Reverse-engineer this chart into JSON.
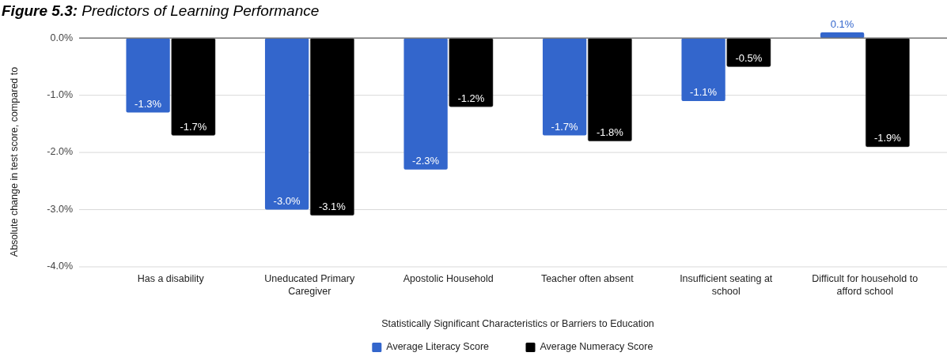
{
  "chart_data": {
    "type": "bar",
    "title": "Figure 5.3: Predictors of Learning Performance",
    "xlabel": "Statistically Significant Characteristics or Barriers to Education",
    "ylabel": "Absolute change in test score, compared to",
    "categories": [
      "Has a disability",
      "Uneducated Primary Caregiver",
      "Apostolic Household",
      "Teacher often absent",
      "Insufficient seating at school",
      "Difficult for household to afford school"
    ],
    "series": [
      {
        "name": "Average Literacy Score",
        "color": "#3366cc",
        "values": [
          -1.3,
          -3.0,
          -2.3,
          -1.7,
          -1.1,
          0.1
        ],
        "value_labels": [
          "-1.3%",
          "-3.0%",
          "-2.3%",
          "-1.7%",
          "-1.1%",
          "0.1%"
        ]
      },
      {
        "name": "Average Numeracy Score",
        "color": "#000000",
        "values": [
          -1.7,
          -3.1,
          -1.2,
          -1.8,
          -0.5,
          -1.9
        ],
        "value_labels": [
          "-1.7%",
          "-3.1%",
          "-1.2%",
          "-1.8%",
          "-0.5%",
          "-1.9%"
        ]
      }
    ],
    "ylim": [
      -4,
      0.1
    ],
    "yticks": [
      {
        "value": -4,
        "label": "-4.0%"
      },
      {
        "value": -3,
        "label": "-3.0%"
      },
      {
        "value": -2,
        "label": "-2.0%"
      },
      {
        "value": -1,
        "label": "-1.0%"
      },
      {
        "value": 0,
        "label": "0.0%"
      }
    ],
    "grid": "y",
    "legend": "bottom"
  }
}
